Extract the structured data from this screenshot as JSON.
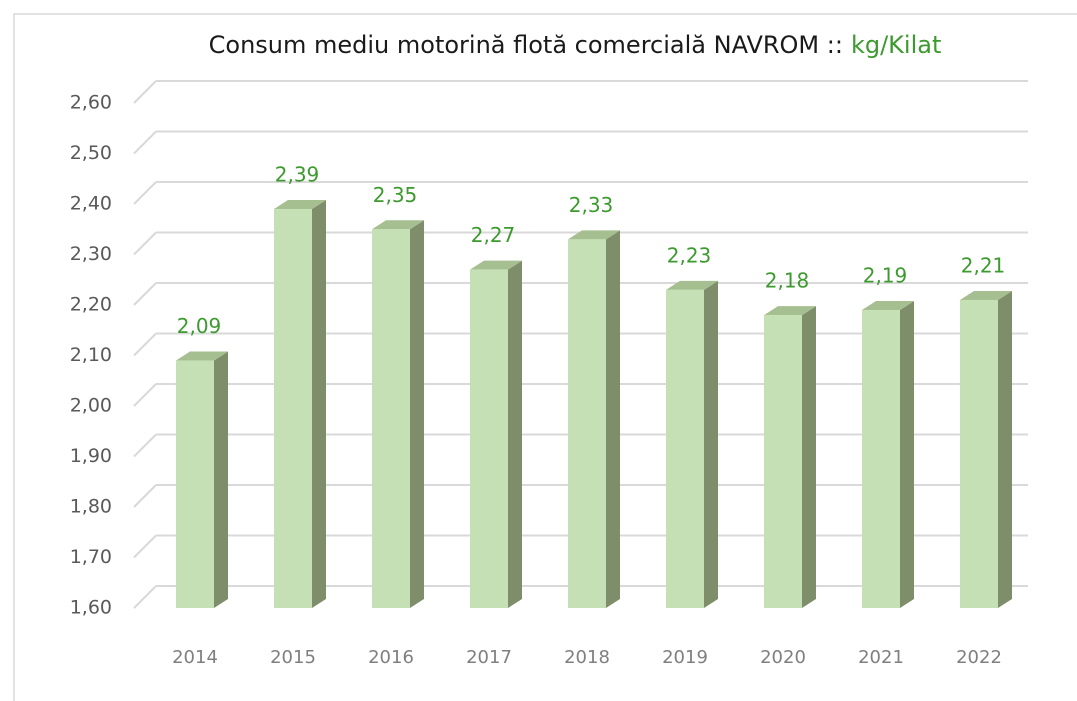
{
  "chart_data": {
    "type": "bar3d",
    "title": "Consum mediu motorină flotă comercială NAVROM ::",
    "title_unit": "kg/Kilat",
    "categories": [
      "2014",
      "2015",
      "2016",
      "2017",
      "2018",
      "2019",
      "2020",
      "2021",
      "2022"
    ],
    "values": [
      2.09,
      2.39,
      2.35,
      2.27,
      2.33,
      2.23,
      2.18,
      2.19,
      2.21
    ],
    "value_labels": [
      "2,09",
      "2,39",
      "2,35",
      "2,27",
      "2,33",
      "2,23",
      "2,18",
      "2,19",
      "2,21"
    ],
    "color": "#c5e0b4",
    "ylim": [
      1.6,
      2.6
    ],
    "yticks": [
      {
        "value": 1.6,
        "label": "1,60"
      },
      {
        "value": 1.7,
        "label": "1,70"
      },
      {
        "value": 1.8,
        "label": "1,80"
      },
      {
        "value": 1.9,
        "label": "1,90"
      },
      {
        "value": 2.0,
        "label": "2,00"
      },
      {
        "value": 2.1,
        "label": "2,10"
      },
      {
        "value": 2.2,
        "label": "2,20"
      },
      {
        "value": 2.3,
        "label": "2,30"
      },
      {
        "value": 2.4,
        "label": "2,40"
      },
      {
        "value": 2.5,
        "label": "2,50"
      },
      {
        "value": 2.6,
        "label": "2,60"
      }
    ],
    "grid": true
  }
}
